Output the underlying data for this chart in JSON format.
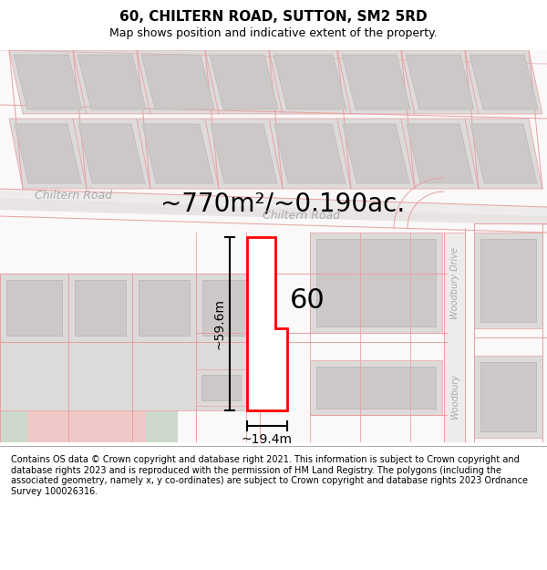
{
  "title": "60, CHILTERN ROAD, SUTTON, SM2 5RD",
  "subtitle": "Map shows position and indicative extent of the property.",
  "footer": "Contains OS data © Crown copyright and database right 2021. This information is subject to Crown copyright and database rights 2023 and is reproduced with the permission of HM Land Registry. The polygons (including the associated geometry, namely x, y co-ordinates) are subject to Crown copyright and database rights 2023 Ordnance Survey 100026316.",
  "area_label": "~770m²/~0.190ac.",
  "property_number": "60",
  "dim_width": "~19.4m",
  "dim_height": "~59.6m",
  "road_label_left": "Chiltern Road",
  "road_label_right": "Chiltern Road",
  "woodbury_label1": "Woodbury Drive",
  "woodbury_label2": "Woodbury",
  "bg_color": "#ffffff",
  "map_bg": "#faf8f8",
  "road_fill": "#f0eded",
  "building_fill": "#dddada",
  "building_inner": "#ccc8c8",
  "street_line_color": "#e8a0a0",
  "road_outline": "#c8a0a0",
  "green_fill": "#ccd8cc",
  "pink_fill": "#f0c8c8",
  "highlight_color": "#ff0000",
  "dim_line_color": "#000000",
  "text_road_color": "#aaaaaa",
  "title_fontsize": 11,
  "subtitle_fontsize": 9,
  "footer_fontsize": 7,
  "area_fontsize": 20,
  "property_num_fontsize": 22,
  "road_label_fontsize": 9,
  "dim_fontsize": 10
}
